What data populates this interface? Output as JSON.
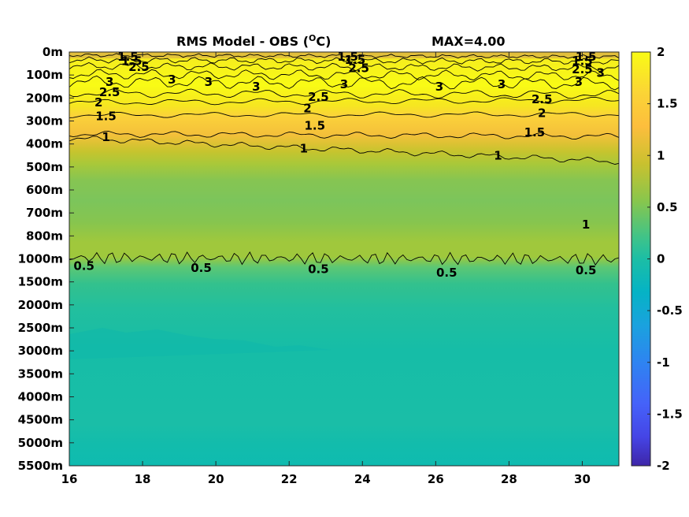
{
  "chart_data": {
    "type": "heatmap",
    "title": "RMS Model - OBS (",
    "title_unit_sup": "O",
    "title_unit": "C)",
    "max_label": "MAX=4.00",
    "x_ticks": [
      16,
      18,
      20,
      22,
      24,
      26,
      28,
      30
    ],
    "xlim": [
      16,
      31
    ],
    "y_tick_labels": [
      "0m",
      "100m",
      "200m",
      "300m",
      "400m",
      "500m",
      "600m",
      "700m",
      "800m",
      "1000m",
      "1500m",
      "2000m",
      "2500m",
      "3000m",
      "3500m",
      "4000m",
      "4500m",
      "5000m",
      "5500m"
    ],
    "colorbar": {
      "ticks": [
        "2",
        "1.5",
        "1",
        "0.5",
        "0",
        "-0.5",
        "-1",
        "-1.5",
        "-2"
      ],
      "range": [
        -2,
        2
      ],
      "colors": [
        "#3e26a8",
        "#4743e8",
        "#2c82f2",
        "#1aa9d8",
        "#08beb5",
        "#49c883",
        "#9bca3f",
        "#d9b830",
        "#fcc336",
        "#f9fb15"
      ]
    },
    "depth_profile_mean": [
      {
        "level": 0,
        "value": 2.8
      },
      {
        "level": 1,
        "value": 2.9
      },
      {
        "level": 2,
        "value": 2.3
      },
      {
        "level": 3,
        "value": 1.5
      },
      {
        "level": 4,
        "value": 1.0
      },
      {
        "level": 5,
        "value": 0.85
      },
      {
        "level": 6,
        "value": 0.8
      },
      {
        "level": 7,
        "value": 0.85
      },
      {
        "level": 8,
        "value": 0.9
      },
      {
        "level": 9,
        "value": 0.5
      },
      {
        "level": 10,
        "value": 0.25
      },
      {
        "level": 11,
        "value": 0.2
      },
      {
        "level": 12,
        "value": 0.15
      },
      {
        "level": 13,
        "value": 0.1
      },
      {
        "level": 14,
        "value": 0.15
      },
      {
        "level": 15,
        "value": 0.15
      },
      {
        "level": 16,
        "value": 0.15
      },
      {
        "level": 17,
        "value": 0.1
      },
      {
        "level": 18,
        "value": 0.05
      }
    ],
    "contour_labels": [
      {
        "text": "1.5",
        "x": 17.6,
        "level": 0.2
      },
      {
        "text": "1.5",
        "x": 17.7,
        "level": 0.4
      },
      {
        "text": "2.5",
        "x": 17.9,
        "level": 0.65
      },
      {
        "text": "3",
        "x": 17.1,
        "level": 1.3
      },
      {
        "text": "2.5",
        "x": 17.1,
        "level": 1.75
      },
      {
        "text": "2",
        "x": 16.8,
        "level": 2.2
      },
      {
        "text": "1.5",
        "x": 17.0,
        "level": 2.8
      },
      {
        "text": "1",
        "x": 17.0,
        "level": 3.7
      },
      {
        "text": "3",
        "x": 18.8,
        "level": 1.2
      },
      {
        "text": "3",
        "x": 19.8,
        "level": 1.3
      },
      {
        "text": "3",
        "x": 21.1,
        "level": 1.5
      },
      {
        "text": "1.5",
        "x": 23.6,
        "level": 0.2
      },
      {
        "text": "1.5",
        "x": 23.8,
        "level": 0.35
      },
      {
        "text": "2.5",
        "x": 23.9,
        "level": 0.7
      },
      {
        "text": "3",
        "x": 23.5,
        "level": 1.4
      },
      {
        "text": "2.5",
        "x": 22.8,
        "level": 1.95
      },
      {
        "text": "2",
        "x": 22.5,
        "level": 2.45
      },
      {
        "text": "1.5",
        "x": 22.7,
        "level": 3.2
      },
      {
        "text": "1",
        "x": 22.4,
        "level": 4.2
      },
      {
        "text": "3",
        "x": 26.1,
        "level": 1.5
      },
      {
        "text": "3",
        "x": 27.8,
        "level": 1.4
      },
      {
        "text": "2.5",
        "x": 28.9,
        "level": 2.05
      },
      {
        "text": "2",
        "x": 28.9,
        "level": 2.65
      },
      {
        "text": "1.5",
        "x": 28.7,
        "level": 3.5
      },
      {
        "text": "1",
        "x": 27.7,
        "level": 4.5
      },
      {
        "text": "1.5",
        "x": 30.1,
        "level": 0.2
      },
      {
        "text": "1.5",
        "x": 30.0,
        "level": 0.4
      },
      {
        "text": "2.5",
        "x": 30.0,
        "level": 0.75
      },
      {
        "text": "3",
        "x": 30.5,
        "level": 0.9
      },
      {
        "text": "3",
        "x": 29.9,
        "level": 1.3
      },
      {
        "text": "1",
        "x": 30.1,
        "level": 7.5
      },
      {
        "text": "0.5",
        "x": 16.4,
        "level": 9.3
      },
      {
        "text": "0.5",
        "x": 19.6,
        "level": 9.4
      },
      {
        "text": "0.5",
        "x": 22.8,
        "level": 9.45
      },
      {
        "text": "0.5",
        "x": 26.3,
        "level": 9.6
      },
      {
        "text": "0.5",
        "x": 30.1,
        "level": 9.5
      }
    ]
  }
}
